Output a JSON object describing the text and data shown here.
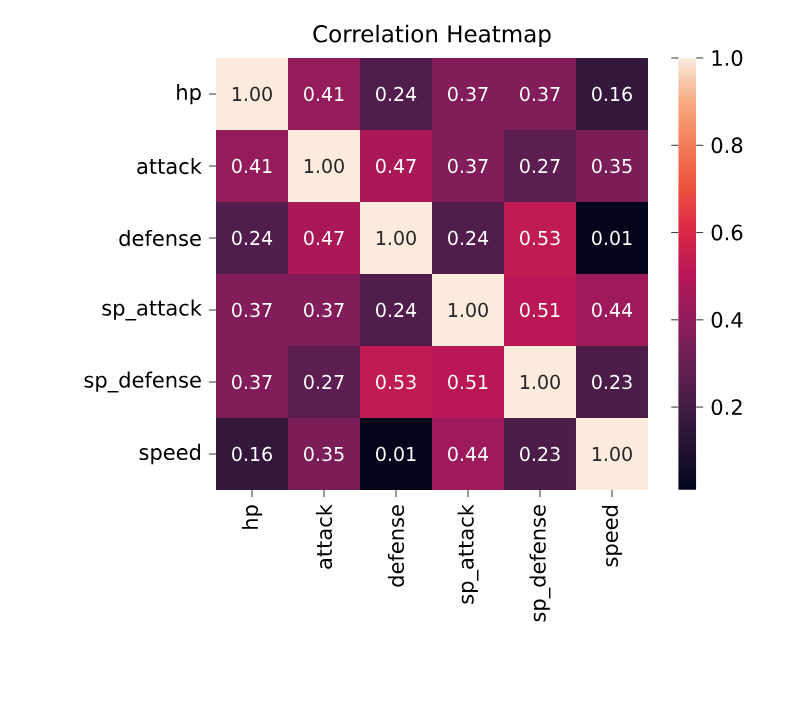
{
  "chart_data": {
    "type": "heatmap",
    "title": "Correlation Heatmap",
    "categories": [
      "hp",
      "attack",
      "defense",
      "sp_attack",
      "sp_defense",
      "speed"
    ],
    "y_categories": [
      "hp",
      "attack",
      "defense",
      "sp_attack",
      "sp_defense",
      "speed"
    ],
    "cells": [
      [
        1.0,
        0.41,
        0.24,
        0.37,
        0.37,
        0.16
      ],
      [
        0.41,
        1.0,
        0.47,
        0.37,
        0.27,
        0.35
      ],
      [
        0.24,
        0.47,
        1.0,
        0.24,
        0.53,
        0.01
      ],
      [
        0.37,
        0.37,
        0.24,
        1.0,
        0.51,
        0.44
      ],
      [
        0.37,
        0.27,
        0.53,
        0.51,
        1.0,
        0.23
      ],
      [
        0.16,
        0.35,
        0.01,
        0.44,
        0.23,
        1.0
      ]
    ],
    "cell_labels": [
      [
        "1.00",
        "0.41",
        "0.24",
        "0.37",
        "0.37",
        "0.16"
      ],
      [
        "0.41",
        "1.00",
        "0.47",
        "0.37",
        "0.27",
        "0.35"
      ],
      [
        "0.24",
        "0.47",
        "1.00",
        "0.24",
        "0.53",
        "0.01"
      ],
      [
        "0.37",
        "0.37",
        "0.24",
        "1.00",
        "0.51",
        "0.44"
      ],
      [
        "0.37",
        "0.27",
        "0.53",
        "0.51",
        "1.00",
        "0.23"
      ],
      [
        "0.16",
        "0.35",
        "0.01",
        "0.44",
        "0.23",
        "1.00"
      ]
    ],
    "data_labels": true,
    "clim": [
      0.01,
      1.0
    ],
    "cticks": [
      0.2,
      0.4,
      0.6,
      0.8,
      {
        "value": 1.0,
        "label": "1.0"
      }
    ]
  }
}
